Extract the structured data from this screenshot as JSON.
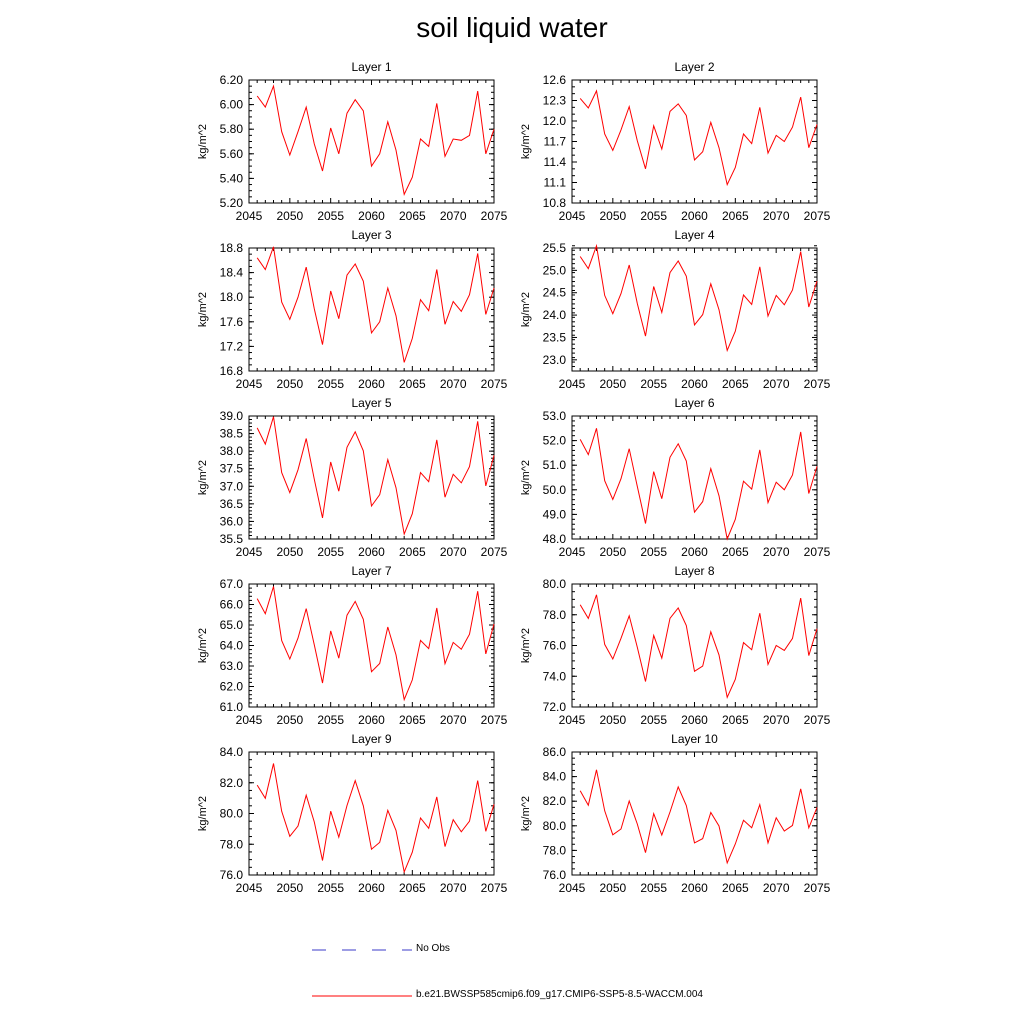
{
  "title": "soil liquid water",
  "colors": {
    "model_line": "#ff0000",
    "obs_line": "#3b3bc8",
    "axis": "#000000"
  },
  "legend": {
    "obs_label": "No Obs",
    "model_label": "b.e21.BWSSP585cmip6.f09_g17.CMIP6-SSP5-8.5-WACCM.004"
  },
  "chart_data": [
    {
      "type": "line",
      "title": "Layer 1",
      "ylabel": "kg/m^2",
      "xlim": [
        2045,
        2075
      ],
      "xticks": [
        "2045",
        "2050",
        "2055",
        "2060",
        "2065",
        "2070",
        "2075"
      ],
      "ylim": [
        5.2,
        6.2
      ],
      "yticks": [
        "5.20",
        "5.40",
        "5.60",
        "5.80",
        "6.00",
        "6.20"
      ],
      "yminor": 0.05,
      "x": [
        2046,
        2047,
        2048,
        2049,
        2050,
        2051,
        2052,
        2053,
        2054,
        2055,
        2056,
        2057,
        2058,
        2059,
        2060,
        2061,
        2062,
        2063,
        2064,
        2065,
        2066,
        2067,
        2068,
        2069,
        2070,
        2071,
        2072,
        2073,
        2074,
        2075
      ],
      "series": [
        {
          "values": [
            6.07,
            5.98,
            6.15,
            5.78,
            5.59,
            5.78,
            5.98,
            5.68,
            5.46,
            5.81,
            5.6,
            5.93,
            6.04,
            5.95,
            5.5,
            5.6,
            5.86,
            5.63,
            5.27,
            5.41,
            5.72,
            5.66,
            6.01,
            5.58,
            5.72,
            5.71,
            5.75,
            6.11,
            5.6,
            5.8
          ]
        }
      ]
    },
    {
      "type": "line",
      "title": "Layer 2",
      "ylabel": "kg/m^2",
      "xlim": [
        2045,
        2075
      ],
      "xticks": [
        "2045",
        "2050",
        "2055",
        "2060",
        "2065",
        "2070",
        "2075"
      ],
      "ylim": [
        10.8,
        12.6
      ],
      "yticks": [
        "10.8",
        "11.1",
        "11.4",
        "11.7",
        "12.0",
        "12.3",
        "12.6"
      ],
      "yminor": 0.1,
      "x": [
        2046,
        2047,
        2048,
        2049,
        2050,
        2051,
        2052,
        2053,
        2054,
        2055,
        2056,
        2057,
        2058,
        2059,
        2060,
        2061,
        2062,
        2063,
        2064,
        2065,
        2066,
        2067,
        2068,
        2069,
        2070,
        2071,
        2072,
        2073,
        2074,
        2075
      ],
      "series": [
        {
          "values": [
            12.33,
            12.19,
            12.44,
            11.81,
            11.57,
            11.87,
            12.21,
            11.71,
            11.3,
            11.93,
            11.59,
            12.14,
            12.25,
            12.08,
            11.43,
            11.55,
            11.98,
            11.61,
            11.07,
            11.32,
            11.81,
            11.67,
            12.2,
            11.53,
            11.79,
            11.7,
            11.91,
            12.35,
            11.61,
            11.95
          ]
        }
      ]
    },
    {
      "type": "line",
      "title": "Layer 3",
      "ylabel": "kg/m^2",
      "xlim": [
        2045,
        2075
      ],
      "xticks": [
        "2045",
        "2050",
        "2055",
        "2060",
        "2065",
        "2070",
        "2075"
      ],
      "ylim": [
        16.8,
        18.8
      ],
      "yticks": [
        "16.8",
        "17.2",
        "17.6",
        "18.0",
        "18.4",
        "18.8"
      ],
      "yminor": 0.1,
      "x": [
        2046,
        2047,
        2048,
        2049,
        2050,
        2051,
        2052,
        2053,
        2054,
        2055,
        2056,
        2057,
        2058,
        2059,
        2060,
        2061,
        2062,
        2063,
        2064,
        2065,
        2066,
        2067,
        2068,
        2069,
        2070,
        2071,
        2072,
        2073,
        2074,
        2075
      ],
      "series": [
        {
          "values": [
            18.64,
            18.45,
            18.82,
            17.92,
            17.64,
            18.0,
            18.49,
            17.81,
            17.23,
            18.1,
            17.65,
            18.36,
            18.54,
            18.26,
            17.42,
            17.6,
            18.15,
            17.7,
            16.94,
            17.33,
            17.96,
            17.78,
            18.45,
            17.56,
            17.93,
            17.77,
            18.04,
            18.71,
            17.72,
            18.15
          ]
        }
      ]
    },
    {
      "type": "line",
      "title": "Layer 4",
      "ylabel": "kg/m^2",
      "xlim": [
        2045,
        2075
      ],
      "xticks": [
        "2045",
        "2050",
        "2055",
        "2060",
        "2065",
        "2070",
        "2075"
      ],
      "ylim": [
        22.75,
        25.5
      ],
      "yticks": [
        "23.0",
        "23.5",
        "24.0",
        "24.5",
        "25.0",
        "25.5"
      ],
      "yticksStart": 23.0,
      "ytickStep": 0.5,
      "yminor": 0.1,
      "x": [
        2046,
        2047,
        2048,
        2049,
        2050,
        2051,
        2052,
        2053,
        2054,
        2055,
        2056,
        2057,
        2058,
        2059,
        2060,
        2061,
        2062,
        2063,
        2064,
        2065,
        2066,
        2067,
        2068,
        2069,
        2070,
        2071,
        2072,
        2073,
        2074,
        2075
      ],
      "series": [
        {
          "values": [
            25.31,
            25.04,
            25.55,
            24.44,
            24.03,
            24.48,
            25.12,
            24.26,
            23.53,
            24.64,
            24.06,
            24.95,
            25.21,
            24.87,
            23.78,
            24.01,
            24.7,
            24.12,
            23.21,
            23.64,
            24.45,
            24.24,
            25.08,
            23.98,
            24.44,
            24.23,
            24.56,
            25.42,
            24.18,
            24.76
          ]
        }
      ]
    },
    {
      "type": "line",
      "title": "Layer 5",
      "ylabel": "kg/m^2",
      "xlim": [
        2045,
        2075
      ],
      "xticks": [
        "2045",
        "2050",
        "2055",
        "2060",
        "2065",
        "2070",
        "2075"
      ],
      "ylim": [
        35.5,
        39.0
      ],
      "yticks": [
        "35.5",
        "36.0",
        "36.5",
        "37.0",
        "37.5",
        "38.0",
        "38.5",
        "39.0"
      ],
      "yminor": 0.1,
      "x": [
        2046,
        2047,
        2048,
        2049,
        2050,
        2051,
        2052,
        2053,
        2054,
        2055,
        2056,
        2057,
        2058,
        2059,
        2060,
        2061,
        2062,
        2063,
        2064,
        2065,
        2066,
        2067,
        2068,
        2069,
        2070,
        2071,
        2072,
        2073,
        2074,
        2075
      ],
      "series": [
        {
          "values": [
            38.66,
            38.2,
            38.98,
            37.39,
            36.82,
            37.47,
            38.36,
            37.2,
            36.1,
            37.69,
            36.86,
            38.11,
            38.55,
            38.01,
            36.44,
            36.76,
            37.76,
            36.96,
            35.64,
            36.22,
            37.39,
            37.13,
            38.32,
            36.69,
            37.34,
            37.1,
            37.56,
            38.85,
            37.01,
            37.88
          ]
        }
      ]
    },
    {
      "type": "line",
      "title": "Layer 6",
      "ylabel": "kg/m^2",
      "xlim": [
        2045,
        2075
      ],
      "xticks": [
        "2045",
        "2050",
        "2055",
        "2060",
        "2065",
        "2070",
        "2075"
      ],
      "ylim": [
        48.0,
        53.0
      ],
      "yticks": [
        "48.0",
        "49.0",
        "50.0",
        "51.0",
        "52.0",
        "53.0"
      ],
      "yminor": 0.2,
      "x": [
        2046,
        2047,
        2048,
        2049,
        2050,
        2051,
        2052,
        2053,
        2054,
        2055,
        2056,
        2057,
        2058,
        2059,
        2060,
        2061,
        2062,
        2063,
        2064,
        2065,
        2066,
        2067,
        2068,
        2069,
        2070,
        2071,
        2072,
        2073,
        2074,
        2075
      ],
      "series": [
        {
          "values": [
            52.05,
            51.43,
            52.5,
            50.37,
            49.61,
            50.45,
            51.67,
            50.14,
            48.63,
            50.74,
            49.64,
            51.32,
            51.87,
            51.17,
            49.09,
            49.52,
            50.86,
            49.76,
            48.0,
            48.8,
            50.35,
            50.03,
            51.62,
            49.48,
            50.31,
            50.0,
            50.6,
            52.35,
            49.85,
            50.95
          ]
        }
      ]
    },
    {
      "type": "line",
      "title": "Layer 7",
      "ylabel": "kg/m^2",
      "xlim": [
        2045,
        2075
      ],
      "xticks": [
        "2045",
        "2050",
        "2055",
        "2060",
        "2065",
        "2070",
        "2075"
      ],
      "ylim": [
        61.0,
        67.0
      ],
      "yticks": [
        "61.0",
        "62.0",
        "63.0",
        "64.0",
        "65.0",
        "66.0",
        "67.0"
      ],
      "yminor": 0.2,
      "x": [
        2046,
        2047,
        2048,
        2049,
        2050,
        2051,
        2052,
        2053,
        2054,
        2055,
        2056,
        2057,
        2058,
        2059,
        2060,
        2061,
        2062,
        2063,
        2064,
        2065,
        2066,
        2067,
        2068,
        2069,
        2070,
        2071,
        2072,
        2073,
        2074,
        2075
      ],
      "series": [
        {
          "values": [
            66.29,
            65.55,
            66.88,
            64.24,
            63.34,
            64.36,
            65.8,
            64.03,
            62.17,
            64.71,
            63.38,
            65.48,
            66.15,
            65.28,
            62.72,
            63.12,
            64.9,
            63.54,
            61.36,
            62.32,
            64.25,
            63.85,
            65.83,
            63.11,
            64.15,
            63.82,
            64.55,
            66.65,
            63.59,
            65.05
          ]
        }
      ]
    },
    {
      "type": "line",
      "title": "Layer 8",
      "ylabel": "kg/m^2",
      "xlim": [
        2045,
        2075
      ],
      "xticks": [
        "2045",
        "2050",
        "2055",
        "2060",
        "2065",
        "2070",
        "2075"
      ],
      "ylim": [
        72.0,
        80.0
      ],
      "yticks": [
        "72.0",
        "74.0",
        "76.0",
        "78.0",
        "80.0"
      ],
      "yminor": 0.5,
      "x": [
        2046,
        2047,
        2048,
        2049,
        2050,
        2051,
        2052,
        2053,
        2054,
        2055,
        2056,
        2057,
        2058,
        2059,
        2060,
        2061,
        2062,
        2063,
        2064,
        2065,
        2066,
        2067,
        2068,
        2069,
        2070,
        2071,
        2072,
        2073,
        2074,
        2075
      ],
      "series": [
        {
          "values": [
            78.65,
            77.76,
            79.3,
            76.07,
            75.12,
            76.47,
            77.93,
            75.89,
            73.66,
            76.66,
            75.18,
            77.77,
            78.44,
            77.3,
            74.32,
            74.66,
            76.89,
            75.39,
            72.63,
            73.8,
            76.19,
            75.73,
            78.1,
            74.77,
            76.0,
            75.68,
            76.46,
            79.08,
            75.34,
            77.1
          ]
        }
      ]
    },
    {
      "type": "line",
      "title": "Layer 9",
      "ylabel": "kg/m^2",
      "xlim": [
        2045,
        2075
      ],
      "xticks": [
        "2045",
        "2050",
        "2055",
        "2060",
        "2065",
        "2070",
        "2075"
      ],
      "ylim": [
        76.0,
        84.0
      ],
      "yticks": [
        "76.0",
        "78.0",
        "80.0",
        "82.0",
        "84.0"
      ],
      "yminor": 0.5,
      "x": [
        2046,
        2047,
        2048,
        2049,
        2050,
        2051,
        2052,
        2053,
        2054,
        2055,
        2056,
        2057,
        2058,
        2059,
        2060,
        2061,
        2062,
        2063,
        2064,
        2065,
        2066,
        2067,
        2068,
        2069,
        2070,
        2071,
        2072,
        2073,
        2074,
        2075
      ],
      "series": [
        {
          "values": [
            81.85,
            80.99,
            83.25,
            80.14,
            78.52,
            79.19,
            81.19,
            79.45,
            76.94,
            80.15,
            78.46,
            80.52,
            82.14,
            80.5,
            77.68,
            78.12,
            80.21,
            78.9,
            76.2,
            77.48,
            79.71,
            79.04,
            81.08,
            77.85,
            79.6,
            78.81,
            79.5,
            82.14,
            78.84,
            80.6
          ]
        }
      ]
    },
    {
      "type": "line",
      "title": "Layer 10",
      "ylabel": "kg/m^2",
      "xlim": [
        2045,
        2075
      ],
      "xticks": [
        "2045",
        "2050",
        "2055",
        "2060",
        "2065",
        "2070",
        "2075"
      ],
      "ylim": [
        76.0,
        86.0
      ],
      "yticks": [
        "76.0",
        "78.0",
        "80.0",
        "82.0",
        "84.0",
        "86.0"
      ],
      "yminor": 0.5,
      "x": [
        2046,
        2047,
        2048,
        2049,
        2050,
        2051,
        2052,
        2053,
        2054,
        2055,
        2056,
        2057,
        2058,
        2059,
        2060,
        2061,
        2062,
        2063,
        2064,
        2065,
        2066,
        2067,
        2068,
        2069,
        2070,
        2071,
        2072,
        2073,
        2074,
        2075
      ],
      "series": [
        {
          "values": [
            82.85,
            81.67,
            84.55,
            81.22,
            79.27,
            79.74,
            82.02,
            80.15,
            77.82,
            80.98,
            79.24,
            81.12,
            83.16,
            81.65,
            78.61,
            78.96,
            81.08,
            79.98,
            76.98,
            78.52,
            80.45,
            79.84,
            81.72,
            78.61,
            80.65,
            79.58,
            80.03,
            83.0,
            79.84,
            81.5
          ]
        }
      ]
    }
  ]
}
